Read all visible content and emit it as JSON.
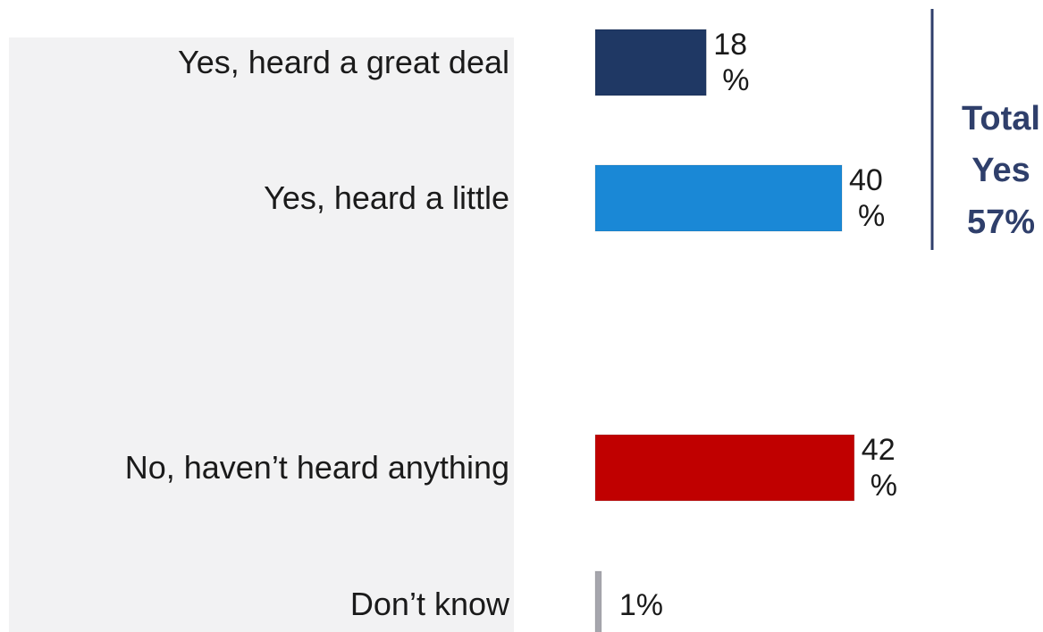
{
  "chart_data": {
    "type": "bar",
    "orientation": "horizontal",
    "categories": [
      "Yes, heard a great deal",
      "Yes, heard a little",
      "No, haven’t heard anything",
      "Don’t know"
    ],
    "values": [
      18,
      40,
      42,
      1
    ],
    "value_labels": [
      [
        "18",
        "%"
      ],
      [
        "40",
        "%"
      ],
      [
        "42",
        "%"
      ],
      [
        "1%"
      ]
    ],
    "colors": [
      "#1f3864",
      "#1a88d6",
      "#c00000",
      "#a6a6ad"
    ],
    "title": "",
    "xlabel": "",
    "ylabel": "",
    "grid": false,
    "bracket": {
      "lines": [
        "Total",
        "Yes",
        "57%"
      ],
      "color": "#2f3f6b",
      "spans_categories": [
        0,
        1
      ]
    }
  }
}
